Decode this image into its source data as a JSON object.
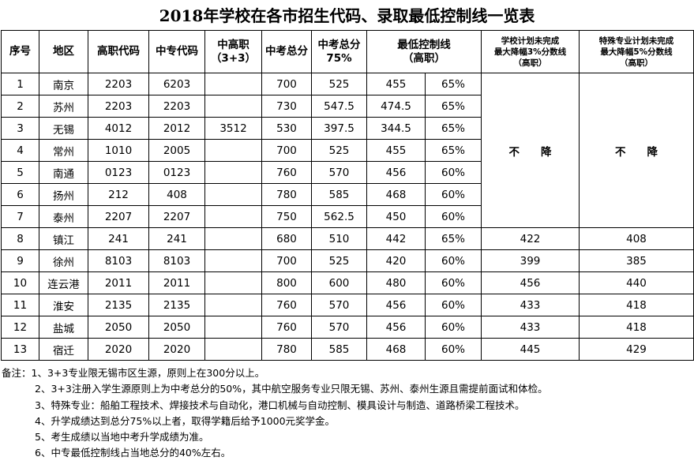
{
  "title": "2018年学校在各市招生代码、录取最低控制线一览表",
  "table": {
    "headers": [
      [
        "序号"
      ],
      [
        "地区"
      ],
      [
        "高职代码"
      ],
      [
        "中专代码"
      ],
      [
        "中高职",
        "（3+3）"
      ],
      [
        "中考总分"
      ],
      [
        "中考总分",
        "75%"
      ],
      [
        "最低控制线",
        "（高职）"
      ],
      [
        "学校计划未完成",
        "最大降幅3%分数线",
        "（高职）"
      ],
      [
        "特殊专业计划未完成",
        "最大降幅5%分数线",
        "（高职）"
      ]
    ],
    "merged_school": "不　　降",
    "merged_special": "不　　降",
    "rows": [
      [
        "1",
        "南京",
        "2203",
        "6203",
        null,
        "700",
        "525",
        "455",
        "65%"
      ],
      [
        "2",
        "苏州",
        "2203",
        "2203",
        null,
        "730",
        "547.5",
        "474.5",
        "65%"
      ],
      [
        "3",
        "无锡",
        "4012",
        "2012",
        "3512",
        "530",
        "397.5",
        "344.5",
        "65%"
      ],
      [
        "4",
        "常州",
        "1010",
        "2005",
        null,
        "700",
        "525",
        "455",
        "65%"
      ],
      [
        "5",
        "南通",
        "0123",
        "0123",
        null,
        "760",
        "570",
        "456",
        "60%"
      ],
      [
        "6",
        "扬州",
        "212",
        "408",
        null,
        "780",
        "585",
        "468",
        "60%"
      ],
      [
        "7",
        "泰州",
        "2207",
        "2207",
        null,
        "750",
        "562.5",
        "450",
        "60%"
      ],
      [
        "8",
        "镇江",
        "241",
        "241",
        null,
        "680",
        "510",
        "442",
        "65%",
        "422",
        "408"
      ],
      [
        "9",
        "徐州",
        "8103",
        "8103",
        null,
        "700",
        "525",
        "420",
        "60%",
        "399",
        "385"
      ],
      [
        "10",
        "连云港",
        "2011",
        "2011",
        null,
        "800",
        "600",
        "480",
        "60%",
        "456",
        "440"
      ],
      [
        "11",
        "淮安",
        "2135",
        "2135",
        null,
        "760",
        "570",
        "456",
        "60%",
        "433",
        "418"
      ],
      [
        "12",
        "盐城",
        "2050",
        "2050",
        null,
        "760",
        "570",
        "456",
        "60%",
        "433",
        "418"
      ],
      [
        "13",
        "宿迁",
        "2020",
        "2020",
        null,
        "780",
        "585",
        "468",
        "60%",
        "445",
        "429"
      ]
    ]
  },
  "notes": {
    "label": "备注：",
    "items": [
      "1、3+3专业限无锡市区生源，原则上在300分以上。",
      "2、3+3注册入学生源原则上为中考总分的50%，其中航空服务专业只限无锡、苏州、泰州生源且需提前面试和体检。",
      "3、特殊专业：船舶工程技术、焊接技术与自动化，港口机械与自动控制、模具设计与制造、道路桥梁工程技术。",
      "4、升学成绩达到总分75%以上者，取得学籍后给予1000元奖学金。",
      "5、考生成绩以当地中考升学成绩为准。",
      "6、中专最低控制线占当地总分的40%左右。"
    ]
  }
}
